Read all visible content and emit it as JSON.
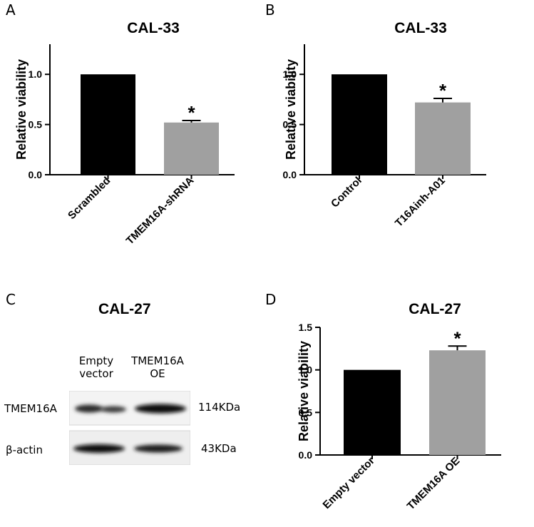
{
  "panel_letters": [
    "A",
    "B",
    "C",
    "D"
  ],
  "chart_data": [
    {
      "panel": "A",
      "type": "bar",
      "title": "CAL-33",
      "ylabel": "Relative viability",
      "categories": [
        "Scrambled",
        "TMEM16A-shRNA"
      ],
      "values": [
        1.0,
        0.52
      ],
      "errors": [
        0,
        0.02
      ],
      "colors": [
        "#000000",
        "#a0a0a0"
      ],
      "significance": [
        "",
        "*"
      ],
      "ylim": [
        0,
        1.3
      ],
      "yticks": [
        "0.0",
        "0.5",
        "1.0"
      ],
      "ytick_values": [
        0.0,
        0.5,
        1.0
      ]
    },
    {
      "panel": "B",
      "type": "bar",
      "title": "CAL-33",
      "ylabel": "Relative viability",
      "categories": [
        "Control",
        "T16Ainh-A01"
      ],
      "values": [
        1.0,
        0.72
      ],
      "errors": [
        0,
        0.04
      ],
      "colors": [
        "#000000",
        "#a0a0a0"
      ],
      "significance": [
        "",
        "*"
      ],
      "ylim": [
        0,
        1.3
      ],
      "yticks": [
        "0.0",
        "0.5",
        "1.0"
      ],
      "ytick_values": [
        0.0,
        0.5,
        1.0
      ]
    },
    {
      "panel": "D",
      "type": "bar",
      "title": "CAL-27",
      "ylabel": "Relative viability",
      "categories": [
        "Empty vector",
        "TMEM16A OE"
      ],
      "values": [
        1.0,
        1.23
      ],
      "errors": [
        0,
        0.05
      ],
      "colors": [
        "#000000",
        "#a0a0a0"
      ],
      "significance": [
        "",
        "*"
      ],
      "ylim": [
        0,
        1.5
      ],
      "yticks": [
        "0.0",
        "0.5",
        "1.0",
        "1.5"
      ],
      "ytick_values": [
        0.0,
        0.5,
        1.0,
        1.5
      ]
    }
  ],
  "blot": {
    "title": "CAL-27",
    "lane1": [
      "Empty",
      "vector"
    ],
    "lane2": [
      "TMEM16A",
      "OE"
    ],
    "rows": [
      {
        "protein": "TMEM16A",
        "size": "114KDa"
      },
      {
        "protein": "β-actin",
        "size": "43KDa"
      }
    ]
  }
}
